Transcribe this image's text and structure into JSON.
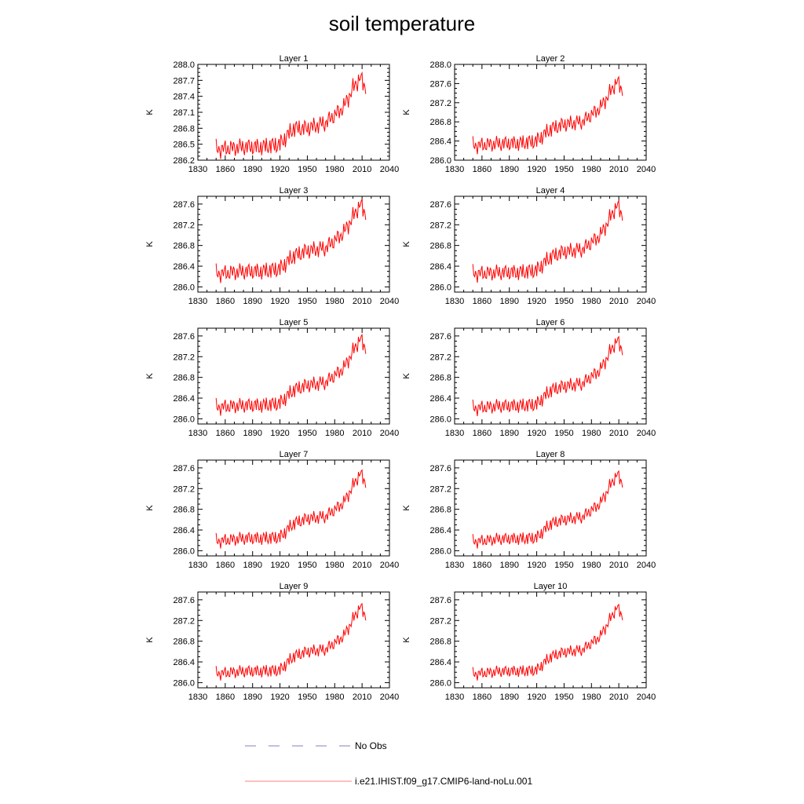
{
  "title": "soil temperature",
  "legend": {
    "items": [
      {
        "label": "No Obs",
        "color": "#8080c0",
        "style": "dashed"
      },
      {
        "label": "i.e21.IHIST.f09_g17.CMIP6-land-noLu.001",
        "color": "#ff8080",
        "style": "solid"
      }
    ]
  },
  "chart_data": [
    {
      "type": "line",
      "title": "Layer 1",
      "ylabel": "K",
      "xlim": [
        1830,
        2040
      ],
      "ylim": [
        286.2,
        288.0
      ],
      "xticks": [
        1830,
        1860,
        1890,
        1920,
        1950,
        1980,
        2010,
        2040
      ],
      "yticks": [
        "286.2",
        "286.5",
        "286.8",
        "287.1",
        "287.4",
        "287.7",
        "288.0"
      ],
      "series": [
        {
          "color": "#ff0000",
          "anchors": [
            [
              1850,
              286.4
            ],
            [
              1880,
              286.45
            ],
            [
              1900,
              286.45
            ],
            [
              1920,
              286.5
            ],
            [
              1935,
              286.8
            ],
            [
              1950,
              286.8
            ],
            [
              1970,
              286.9
            ],
            [
              1990,
              287.2
            ],
            [
              2000,
              287.55
            ],
            [
              2008,
              287.75
            ],
            [
              2014,
              287.55
            ]
          ],
          "amp": 0.2
        }
      ]
    },
    {
      "type": "line",
      "title": "Layer 2",
      "ylabel": "K",
      "xlim": [
        1830,
        2040
      ],
      "ylim": [
        286.0,
        288.0
      ],
      "xticks": [
        1830,
        1860,
        1890,
        1920,
        1950,
        1980,
        2010,
        2040
      ],
      "yticks": [
        "286.0",
        "286.4",
        "286.8",
        "287.2",
        "287.6",
        "288.0"
      ],
      "series": [
        {
          "color": "#ff0000",
          "anchors": [
            [
              1850,
              286.3
            ],
            [
              1880,
              286.35
            ],
            [
              1900,
              286.35
            ],
            [
              1920,
              286.4
            ],
            [
              1935,
              286.65
            ],
            [
              1950,
              286.75
            ],
            [
              1970,
              286.8
            ],
            [
              1990,
              287.1
            ],
            [
              2000,
              287.4
            ],
            [
              2008,
              287.65
            ],
            [
              2014,
              287.45
            ]
          ],
          "amp": 0.2
        }
      ]
    },
    {
      "type": "line",
      "title": "Layer 3",
      "ylabel": "K",
      "xlim": [
        1830,
        2040
      ],
      "ylim": [
        285.9,
        287.75
      ],
      "xticks": [
        1830,
        1860,
        1890,
        1920,
        1950,
        1980,
        2010,
        2040
      ],
      "yticks": [
        "286.0",
        "286.4",
        "286.8",
        "287.2",
        "287.6"
      ],
      "series": [
        {
          "color": "#ff0000",
          "anchors": [
            [
              1850,
              286.25
            ],
            [
              1880,
              286.3
            ],
            [
              1900,
              286.3
            ],
            [
              1920,
              286.35
            ],
            [
              1935,
              286.6
            ],
            [
              1950,
              286.7
            ],
            [
              1970,
              286.75
            ],
            [
              1990,
              287.05
            ],
            [
              2000,
              287.35
            ],
            [
              2008,
              287.6
            ],
            [
              2014,
              287.4
            ]
          ],
          "amp": 0.2
        }
      ]
    },
    {
      "type": "line",
      "title": "Layer 4",
      "ylabel": "K",
      "xlim": [
        1830,
        2040
      ],
      "ylim": [
        285.9,
        287.75
      ],
      "xticks": [
        1830,
        1860,
        1890,
        1920,
        1950,
        1980,
        2010,
        2040
      ],
      "yticks": [
        "286.0",
        "286.4",
        "286.8",
        "287.2",
        "287.6"
      ],
      "series": [
        {
          "color": "#ff0000",
          "anchors": [
            [
              1850,
              286.25
            ],
            [
              1880,
              286.28
            ],
            [
              1900,
              286.28
            ],
            [
              1920,
              286.32
            ],
            [
              1935,
              286.58
            ],
            [
              1950,
              286.68
            ],
            [
              1970,
              286.72
            ],
            [
              1990,
              287.0
            ],
            [
              2000,
              287.32
            ],
            [
              2008,
              287.58
            ],
            [
              2014,
              287.38
            ]
          ],
          "amp": 0.19
        }
      ]
    },
    {
      "type": "line",
      "title": "Layer 5",
      "ylabel": "K",
      "xlim": [
        1830,
        2040
      ],
      "ylim": [
        285.9,
        287.75
      ],
      "xticks": [
        1830,
        1860,
        1890,
        1920,
        1950,
        1980,
        2010,
        2040
      ],
      "yticks": [
        "286.0",
        "286.4",
        "286.8",
        "287.2",
        "287.6"
      ],
      "series": [
        {
          "color": "#ff0000",
          "anchors": [
            [
              1850,
              286.22
            ],
            [
              1880,
              286.26
            ],
            [
              1900,
              286.26
            ],
            [
              1920,
              286.3
            ],
            [
              1935,
              286.56
            ],
            [
              1950,
              286.65
            ],
            [
              1970,
              286.7
            ],
            [
              1990,
              286.98
            ],
            [
              2000,
              287.3
            ],
            [
              2008,
              287.55
            ],
            [
              2014,
              287.35
            ]
          ],
          "amp": 0.18
        }
      ]
    },
    {
      "type": "line",
      "title": "Layer 6",
      "ylabel": "K",
      "xlim": [
        1830,
        2040
      ],
      "ylim": [
        285.9,
        287.75
      ],
      "xticks": [
        1830,
        1860,
        1890,
        1920,
        1950,
        1980,
        2010,
        2040
      ],
      "yticks": [
        "286.0",
        "286.4",
        "286.8",
        "287.2",
        "287.6"
      ],
      "series": [
        {
          "color": "#ff0000",
          "anchors": [
            [
              1850,
              286.2
            ],
            [
              1880,
              286.25
            ],
            [
              1900,
              286.25
            ],
            [
              1920,
              286.28
            ],
            [
              1935,
              286.55
            ],
            [
              1950,
              286.63
            ],
            [
              1970,
              286.68
            ],
            [
              1990,
              286.95
            ],
            [
              2000,
              287.28
            ],
            [
              2008,
              287.52
            ],
            [
              2014,
              287.32
            ]
          ],
          "amp": 0.17
        }
      ]
    },
    {
      "type": "line",
      "title": "Layer 7",
      "ylabel": "K",
      "xlim": [
        1830,
        2040
      ],
      "ylim": [
        285.9,
        287.75
      ],
      "xticks": [
        1830,
        1860,
        1890,
        1920,
        1950,
        1980,
        2010,
        2040
      ],
      "yticks": [
        "286.0",
        "286.4",
        "286.8",
        "287.2",
        "287.6"
      ],
      "series": [
        {
          "color": "#ff0000",
          "anchors": [
            [
              1850,
              286.18
            ],
            [
              1880,
              286.24
            ],
            [
              1900,
              286.24
            ],
            [
              1920,
              286.26
            ],
            [
              1935,
              286.53
            ],
            [
              1950,
              286.62
            ],
            [
              1970,
              286.66
            ],
            [
              1990,
              286.93
            ],
            [
              2000,
              287.25
            ],
            [
              2008,
              287.5
            ],
            [
              2014,
              287.3
            ]
          ],
          "amp": 0.16
        }
      ]
    },
    {
      "type": "line",
      "title": "Layer 8",
      "ylabel": "K",
      "xlim": [
        1830,
        2040
      ],
      "ylim": [
        285.9,
        287.75
      ],
      "xticks": [
        1830,
        1860,
        1890,
        1920,
        1950,
        1980,
        2010,
        2040
      ],
      "yticks": [
        "286.0",
        "286.4",
        "286.8",
        "287.2",
        "287.6"
      ],
      "series": [
        {
          "color": "#ff0000",
          "anchors": [
            [
              1850,
              286.17
            ],
            [
              1880,
              286.23
            ],
            [
              1900,
              286.23
            ],
            [
              1920,
              286.25
            ],
            [
              1935,
              286.52
            ],
            [
              1950,
              286.6
            ],
            [
              1970,
              286.65
            ],
            [
              1990,
              286.92
            ],
            [
              2000,
              287.24
            ],
            [
              2008,
              287.48
            ],
            [
              2014,
              287.3
            ]
          ],
          "amp": 0.15
        }
      ]
    },
    {
      "type": "line",
      "title": "Layer 9",
      "ylabel": "K",
      "xlim": [
        1830,
        2040
      ],
      "ylim": [
        285.9,
        287.75
      ],
      "xticks": [
        1830,
        1860,
        1890,
        1920,
        1950,
        1980,
        2010,
        2040
      ],
      "yticks": [
        "286.0",
        "286.4",
        "286.8",
        "287.2",
        "287.6"
      ],
      "series": [
        {
          "color": "#ff0000",
          "anchors": [
            [
              1850,
              286.17
            ],
            [
              1880,
              286.22
            ],
            [
              1900,
              286.22
            ],
            [
              1920,
              286.24
            ],
            [
              1935,
              286.51
            ],
            [
              1950,
              286.6
            ],
            [
              1970,
              286.64
            ],
            [
              1990,
              286.9
            ],
            [
              2000,
              287.22
            ],
            [
              2008,
              287.47
            ],
            [
              2014,
              287.28
            ]
          ],
          "amp": 0.15
        }
      ]
    },
    {
      "type": "line",
      "title": "Layer 10",
      "ylabel": "K",
      "xlim": [
        1830,
        2040
      ],
      "ylim": [
        285.9,
        287.75
      ],
      "xticks": [
        1830,
        1860,
        1890,
        1920,
        1950,
        1980,
        2010,
        2040
      ],
      "yticks": [
        "286.0",
        "286.4",
        "286.8",
        "287.2",
        "287.6"
      ],
      "series": [
        {
          "color": "#ff0000",
          "anchors": [
            [
              1850,
              286.16
            ],
            [
              1880,
              286.22
            ],
            [
              1900,
              286.22
            ],
            [
              1920,
              286.24
            ],
            [
              1935,
              286.5
            ],
            [
              1950,
              286.59
            ],
            [
              1970,
              286.63
            ],
            [
              1990,
              286.9
            ],
            [
              2000,
              287.21
            ],
            [
              2008,
              287.46
            ],
            [
              2014,
              287.28
            ]
          ],
          "amp": 0.14
        }
      ]
    }
  ]
}
